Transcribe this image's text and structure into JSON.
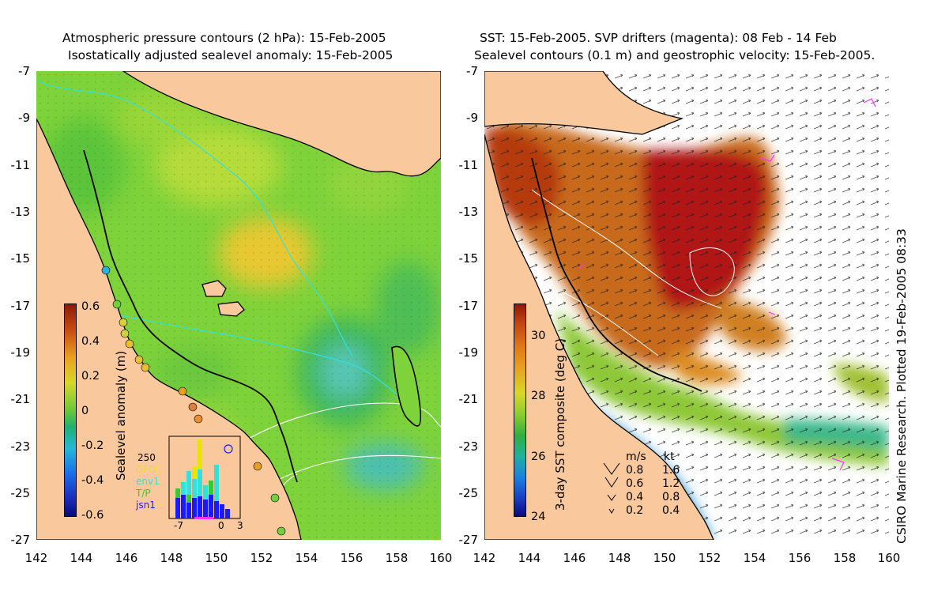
{
  "left_panel": {
    "title_line1": "Atmospheric pressure contours (2 hPa): 15-Feb-2005",
    "title_line2": "Isostatically adjusted sealevel anomaly: 15-Feb-2005",
    "colorbar": {
      "label": "Sealevel anomaly (m)",
      "ticks": [
        "0.6",
        "0.4",
        "0.2",
        "0",
        "-0.2",
        "-0.4",
        "-0.6"
      ],
      "range": [
        -0.6,
        0.6
      ]
    },
    "inset": {
      "ymax_label": "250",
      "legend": [
        {
          "name": "GFO",
          "color": "#e6e600"
        },
        {
          "name": "env1",
          "color": "#33e0e0"
        },
        {
          "name": "T/P",
          "color": "#33cc33"
        },
        {
          "name": "jsn1",
          "color": "#1a1aff"
        }
      ],
      "xticks": [
        "-7",
        "0",
        "3"
      ]
    }
  },
  "right_panel": {
    "title_line1": "SST: 15-Feb-2005. SVP drifters (magenta): 08 Feb - 14 Feb",
    "title_line2": "Sealevel contours (0.1 m) and geostrophic velocity: 15-Feb-2005.",
    "colorbar": {
      "label": "3-day SST composite (deg C)",
      "ticks": [
        "30",
        "28",
        "26",
        "24"
      ],
      "range": [
        24,
        31
      ]
    },
    "velocity_key": {
      "header_ms": "m/s",
      "header_kt": "kt",
      "rows": [
        {
          "ms": "0.8",
          "kt": "1.6"
        },
        {
          "ms": "0.6",
          "kt": "1.2"
        },
        {
          "ms": "0.4",
          "kt": "0.8"
        },
        {
          "ms": "0.2",
          "kt": "0.4"
        }
      ]
    }
  },
  "axes": {
    "lat_ticks": [
      "-7",
      "-9",
      "-11",
      "-13",
      "-15",
      "-17",
      "-19",
      "-21",
      "-23",
      "-25",
      "-27"
    ],
    "lon_ticks": [
      "142",
      "144",
      "146",
      "148",
      "150",
      "152",
      "154",
      "156",
      "158",
      "160"
    ],
    "lon_range": [
      142,
      160
    ],
    "lat_range": [
      -27,
      -7
    ]
  },
  "credit": "CSIRO Marine Research. Plotted 19-Feb-2005 08:33",
  "colors": {
    "land": "#f9c89c",
    "coast": "#000000",
    "pressure_contour": "#33e0e0",
    "drifter": "#ff33ff"
  }
}
